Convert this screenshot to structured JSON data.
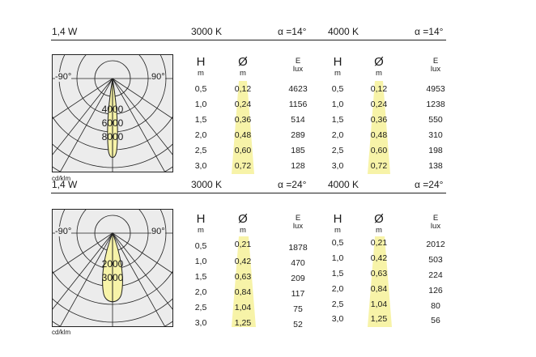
{
  "sections": [
    {
      "power": "1,4 W",
      "cct_a": "3000 K",
      "alpha_a": "α =14°",
      "cct_b": "4000 K",
      "alpha_b": "α =14°",
      "col_h": "H",
      "col_h_unit": "m",
      "col_d": "Ø",
      "col_d_unit": "m",
      "col_e": "E",
      "col_e_unit": "lux",
      "heights": [
        "0,5",
        "1,0",
        "1,5",
        "2,0",
        "2,5",
        "3,0"
      ],
      "diameters": [
        "0,12",
        "0,24",
        "0,36",
        "0,48",
        "0,60",
        "0,72"
      ],
      "lux_a": [
        "4623",
        "1156",
        "514",
        "289",
        "185",
        "128"
      ],
      "lux_b": [
        "4953",
        "1238",
        "550",
        "310",
        "198",
        "138"
      ],
      "polar": {
        "angle_left": "-90°",
        "angle_right": "90°",
        "rings": [
          "4000",
          "6000",
          "8000"
        ]
      },
      "unit_note": "cd/klm"
    },
    {
      "power": "1,4 W",
      "cct_a": "3000 K",
      "alpha_a": "α =24°",
      "cct_b": "4000 K",
      "alpha_b": "α =24°",
      "col_h": "H",
      "col_h_unit": "m",
      "col_d": "Ø",
      "col_d_unit": "m",
      "col_e": "E",
      "col_e_unit": "lux",
      "heights": [
        "0,5",
        "1,0",
        "1,5",
        "2,0",
        "2,5",
        "3,0"
      ],
      "diameters": [
        "0,21",
        "0,42",
        "0,63",
        "0,84",
        "1,04",
        "1,25"
      ],
      "lux_a": [
        "1878",
        "470",
        "209",
        "117",
        "75",
        "52"
      ],
      "lux_b": [
        "2012",
        "503",
        "224",
        "126",
        "80",
        "56"
      ],
      "polar": {
        "angle_left": "-90°",
        "angle_right": "90°",
        "rings": [
          "2000",
          "3000"
        ]
      },
      "unit_note": "cd/klm"
    }
  ],
  "colors": {
    "highlight": "#f7f3a8",
    "lobe": "#f7f3a8",
    "diagram_bg": "#ececec",
    "line": "#222222"
  }
}
